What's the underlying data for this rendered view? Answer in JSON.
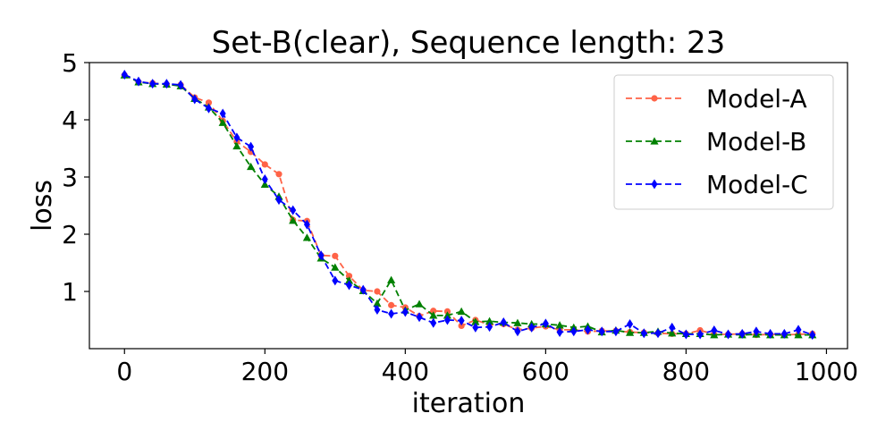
{
  "chart_data": {
    "type": "line",
    "title": "Set-B(clear), Sequence length: 23",
    "xlabel": "iteration",
    "ylabel": "loss",
    "xlim": [
      -50,
      1030
    ],
    "ylim": [
      0.0,
      5.0
    ],
    "xticks": [
      0,
      200,
      400,
      600,
      800,
      1000
    ],
    "yticks": [
      1,
      2,
      3,
      4,
      5
    ],
    "grid": false,
    "legend_position": "top-right",
    "x": [
      0,
      20,
      40,
      60,
      80,
      100,
      120,
      140,
      160,
      180,
      200,
      220,
      240,
      260,
      280,
      300,
      320,
      340,
      360,
      380,
      400,
      420,
      440,
      460,
      480,
      500,
      520,
      540,
      560,
      580,
      600,
      620,
      640,
      660,
      680,
      700,
      720,
      740,
      760,
      780,
      800,
      820,
      840,
      860,
      880,
      900,
      920,
      940,
      960,
      980
    ],
    "series": [
      {
        "name": "Model-A",
        "color": "#ff6347",
        "marker": "circle",
        "values": [
          4.78,
          4.66,
          4.64,
          4.62,
          4.61,
          4.39,
          4.3,
          3.98,
          3.62,
          3.44,
          3.22,
          3.05,
          2.25,
          2.23,
          1.63,
          1.62,
          1.27,
          1.02,
          1.0,
          0.76,
          0.72,
          0.57,
          0.66,
          0.65,
          0.4,
          0.5,
          0.42,
          0.43,
          0.33,
          0.36,
          0.39,
          0.33,
          0.33,
          0.3,
          0.31,
          0.31,
          0.29,
          0.28,
          0.27,
          0.26,
          0.26,
          0.32,
          0.25,
          0.25,
          0.26,
          0.24,
          0.25,
          0.24,
          0.25,
          0.26
        ]
      },
      {
        "name": "Model-B",
        "color": "#008000",
        "marker": "triangle",
        "values": [
          4.78,
          4.66,
          4.63,
          4.62,
          4.59,
          4.37,
          4.22,
          3.95,
          3.54,
          3.18,
          2.87,
          2.66,
          2.24,
          1.94,
          1.58,
          1.42,
          1.19,
          1.01,
          0.79,
          1.2,
          0.67,
          0.78,
          0.58,
          0.58,
          0.65,
          0.47,
          0.48,
          0.46,
          0.45,
          0.43,
          0.43,
          0.41,
          0.37,
          0.39,
          0.29,
          0.32,
          0.28,
          0.28,
          0.3,
          0.27,
          0.26,
          0.26,
          0.24,
          0.25,
          0.24,
          0.25,
          0.24,
          0.24,
          0.24,
          0.24
        ]
      },
      {
        "name": "Model-C",
        "color": "#0000ff",
        "marker": "diamond",
        "values": [
          4.79,
          4.67,
          4.63,
          4.63,
          4.61,
          4.36,
          4.2,
          4.11,
          3.69,
          3.53,
          2.96,
          2.6,
          2.42,
          2.17,
          1.63,
          1.19,
          1.11,
          1.03,
          0.68,
          0.61,
          0.64,
          0.55,
          0.45,
          0.5,
          0.49,
          0.37,
          0.38,
          0.46,
          0.3,
          0.37,
          0.44,
          0.29,
          0.3,
          0.33,
          0.3,
          0.3,
          0.43,
          0.27,
          0.27,
          0.37,
          0.25,
          0.25,
          0.32,
          0.25,
          0.26,
          0.3,
          0.26,
          0.26,
          0.33,
          0.24
        ]
      }
    ]
  }
}
